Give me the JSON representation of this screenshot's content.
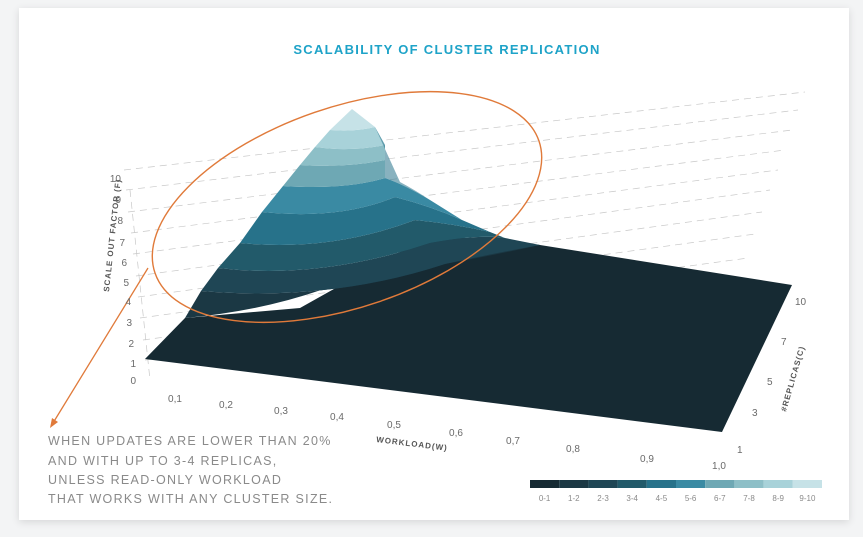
{
  "chart_data": {
    "type": "surface",
    "title": "SCALABILITY OF CLUSTER REPLICATION",
    "zlabel": "SCALE OUT FACTOR (F)",
    "xlabel": "WORKLOAD(W)",
    "ylabel": "#REPLICAS(C)",
    "z_ticks": [
      "0",
      "1",
      "2",
      "3",
      "4",
      "5",
      "6",
      "7",
      "8",
      "9",
      "10"
    ],
    "x_ticks": [
      "0,1",
      "0,2",
      "0,3",
      "0,4",
      "0,5",
      "0,6",
      "0,7",
      "0,8",
      "0,9",
      "1,0"
    ],
    "y_ticks": [
      "1",
      "3",
      "5",
      "7",
      "10"
    ],
    "zlim": [
      0,
      10
    ],
    "legend": {
      "labels": [
        "0-1",
        "1-2",
        "2-3",
        "3-4",
        "4-5",
        "5-6",
        "6-7",
        "7-8",
        "8-9",
        "9-10"
      ],
      "colors": [
        "#162a33",
        "#1b3844",
        "#1f4655",
        "#225a6a",
        "#27728a",
        "#3a8aa3",
        "#6ea8b4",
        "#8dbfc7",
        "#a8d2d9",
        "#c6e2e7"
      ]
    },
    "annotation": [
      "WHEN UPDATES ARE LOWER THAN 20%",
      "AND WITH UP TO 3-4 REPLICAS,",
      "UNLESS READ-ONLY WORKLOAD",
      "THAT WORKS WITH ANY CLUSTER SIZE."
    ],
    "annotation_color": "#e07a3a"
  }
}
